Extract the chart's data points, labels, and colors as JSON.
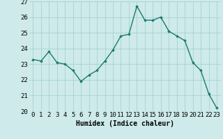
{
  "x": [
    0,
    1,
    2,
    3,
    4,
    5,
    6,
    7,
    8,
    9,
    10,
    11,
    12,
    13,
    14,
    15,
    16,
    17,
    18,
    19,
    20,
    21,
    22,
    23
  ],
  "y": [
    23.3,
    23.2,
    23.8,
    23.1,
    23.0,
    22.6,
    21.9,
    22.3,
    22.6,
    23.2,
    23.9,
    24.8,
    24.9,
    26.7,
    25.8,
    25.8,
    26.0,
    25.1,
    24.8,
    24.5,
    23.1,
    22.6,
    21.1,
    20.2
  ],
  "xlabel": "Humidex (Indice chaleur)",
  "ylim": [
    20,
    27
  ],
  "xlim": [
    -0.5,
    23.5
  ],
  "yticks": [
    20,
    21,
    22,
    23,
    24,
    25,
    26,
    27
  ],
  "xticks": [
    0,
    1,
    2,
    3,
    4,
    5,
    6,
    7,
    8,
    9,
    10,
    11,
    12,
    13,
    14,
    15,
    16,
    17,
    18,
    19,
    20,
    21,
    22,
    23
  ],
  "line_color": "#1a7a6e",
  "marker": "D",
  "marker_size": 1.8,
  "line_width": 1.0,
  "bg_color": "#ceeaea",
  "grid_color": "#a0cccc",
  "xlabel_fontsize": 7,
  "tick_fontsize": 6.5
}
